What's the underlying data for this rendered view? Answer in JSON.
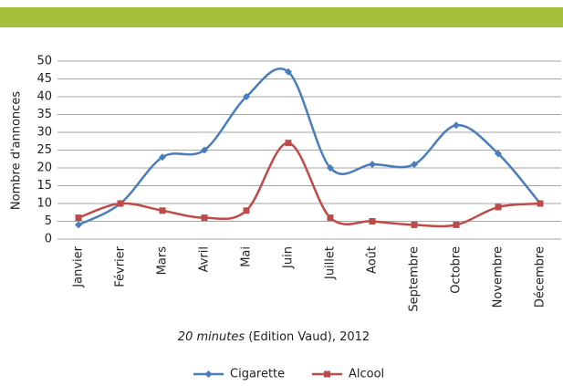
{
  "chart_data": {
    "type": "line",
    "y_label": "Nombre d'annonces",
    "source_italic": "20 minutes",
    "source": "(Edition Vaud), 2012",
    "categories": [
      "Janvier",
      "Février",
      "Mars",
      "Avril",
      "Mai",
      "Juin",
      "Juillet",
      "Août",
      "Septembre",
      "Octobre",
      "Novembre",
      "Décembre"
    ],
    "series": [
      {
        "name": "Cigarette",
        "color": "#4a7ebb",
        "values": [
          4,
          10,
          23,
          25,
          40,
          47,
          20,
          21,
          21,
          32,
          24,
          10
        ]
      },
      {
        "name": "Alcool",
        "color": "#be4b48",
        "values": [
          6,
          10,
          8,
          6,
          8,
          27,
          6,
          5,
          4,
          4,
          9,
          10
        ]
      }
    ],
    "ylim": [
      0,
      50
    ],
    "yticks": [
      0,
      5,
      10,
      15,
      20,
      25,
      30,
      35,
      40,
      45,
      50
    ],
    "grid": true,
    "smooth": true
  }
}
